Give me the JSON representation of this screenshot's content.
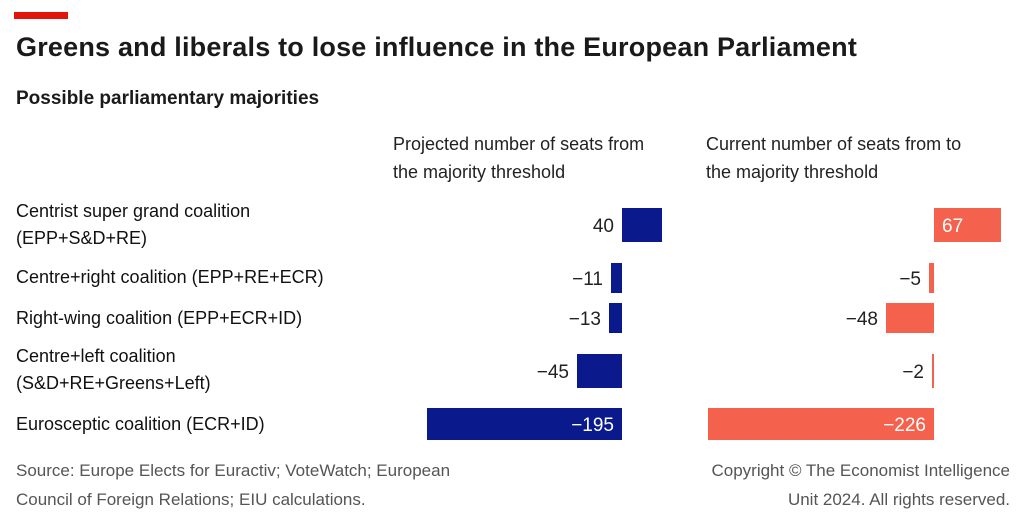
{
  "title": "Greens and liberals to lose influence in the European Parliament",
  "subtitle": "Possible parliamentary majorities",
  "panels": [
    {
      "head_line1": "Projected number of seats from",
      "head_line2": "the majority threshold"
    },
    {
      "head_line1": "Current number of seats from to",
      "head_line2": "the majority threshold"
    }
  ],
  "rows": [
    {
      "line1": "Centrist super grand coalition",
      "line2": "(EPP+S&D+RE)"
    },
    {
      "line1": "Centre+right coalition (EPP+RE+ECR)",
      "line2": ""
    },
    {
      "line1": "Right-wing coalition (EPP+ECR+ID)",
      "line2": ""
    },
    {
      "line1": "Centre+left coalition",
      "line2": "(S&D+RE+Greens+Left)"
    },
    {
      "line1": "Eurosceptic coalition (ECR+ID)",
      "line2": ""
    }
  ],
  "footer": {
    "source_line1": "Source: Europe Elects for Euractiv; VoteWatch; European",
    "source_line2": "Council of Foreign Relations; EIU calculations.",
    "copyright_line1": "Copyright © The Economist Intelligence",
    "copyright_line2": "Unit 2024. All rights reserved."
  },
  "colors": {
    "projected": "#0a1a8c",
    "current": "#f4614d",
    "brand_red": "#e3120b"
  },
  "chart_data": {
    "type": "bar",
    "orientation": "horizontal",
    "categories": [
      "Centrist super grand coalition (EPP+S&D+RE)",
      "Centre+right coalition (EPP+RE+ECR)",
      "Right-wing coalition (EPP+ECR+ID)",
      "Centre+left coalition (S&D+RE+Greens+Left)",
      "Eurosceptic coalition (ECR+ID)"
    ],
    "series": [
      {
        "name": "Projected number of seats from the majority threshold",
        "values": [
          40,
          -11,
          -13,
          -45,
          -195
        ],
        "labels": [
          "40",
          "−11",
          "−13",
          "−45",
          "−195"
        ]
      },
      {
        "name": "Current number of seats from to the majority threshold",
        "values": [
          67,
          -5,
          -48,
          -2,
          -226
        ],
        "labels": [
          "67",
          "−5",
          "−48",
          "−2",
          "−226"
        ]
      }
    ],
    "title": "Greens and liberals to lose influence in the European Parliament",
    "subtitle": "Possible parliamentary majorities",
    "grid": false,
    "legend": "none"
  }
}
